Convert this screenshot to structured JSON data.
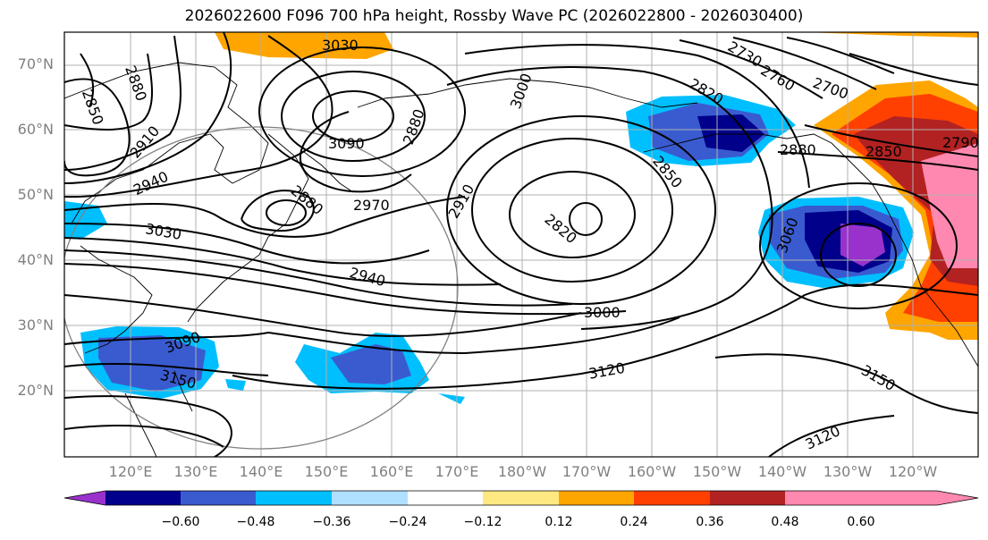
{
  "title": "2026022600 F096 700 hPa height, Rossby Wave PC (2026022800 - 2026030400)",
  "lat_ticks": [
    "70°N",
    "60°N",
    "50°N",
    "40°N",
    "30°N",
    "20°N"
  ],
  "lon_ticks": [
    "120°E",
    "130°E",
    "140°E",
    "150°E",
    "160°E",
    "170°E",
    "180°W",
    "170°W",
    "160°W",
    "150°W",
    "140°W",
    "130°W",
    "120°W"
  ],
  "contour_labels": [
    "3030",
    "2880",
    "2850",
    "2910",
    "3090",
    "2880",
    "3000",
    "2820",
    "2730",
    "2760",
    "2700",
    "2940",
    "2880",
    "2850",
    "2790",
    "2970",
    "2910",
    "2880",
    "2820",
    "2850",
    "3060",
    "3030",
    "2940",
    "3000",
    "3090",
    "3120",
    "3150",
    "3150",
    "3120"
  ],
  "colorbar": {
    "ticks": [
      "−0.60",
      "−0.48",
      "−0.36",
      "−0.24",
      "−0.12",
      "0.12",
      "0.24",
      "0.36",
      "0.48",
      "0.60"
    ],
    "colors": [
      "#9932cc",
      "#00008b",
      "#3a5bcf",
      "#00bfff",
      "#b0e0ff",
      "#ffffff",
      "#ffe882",
      "#ffa500",
      "#ff4000",
      "#b22222",
      "#ff88b0"
    ]
  }
}
